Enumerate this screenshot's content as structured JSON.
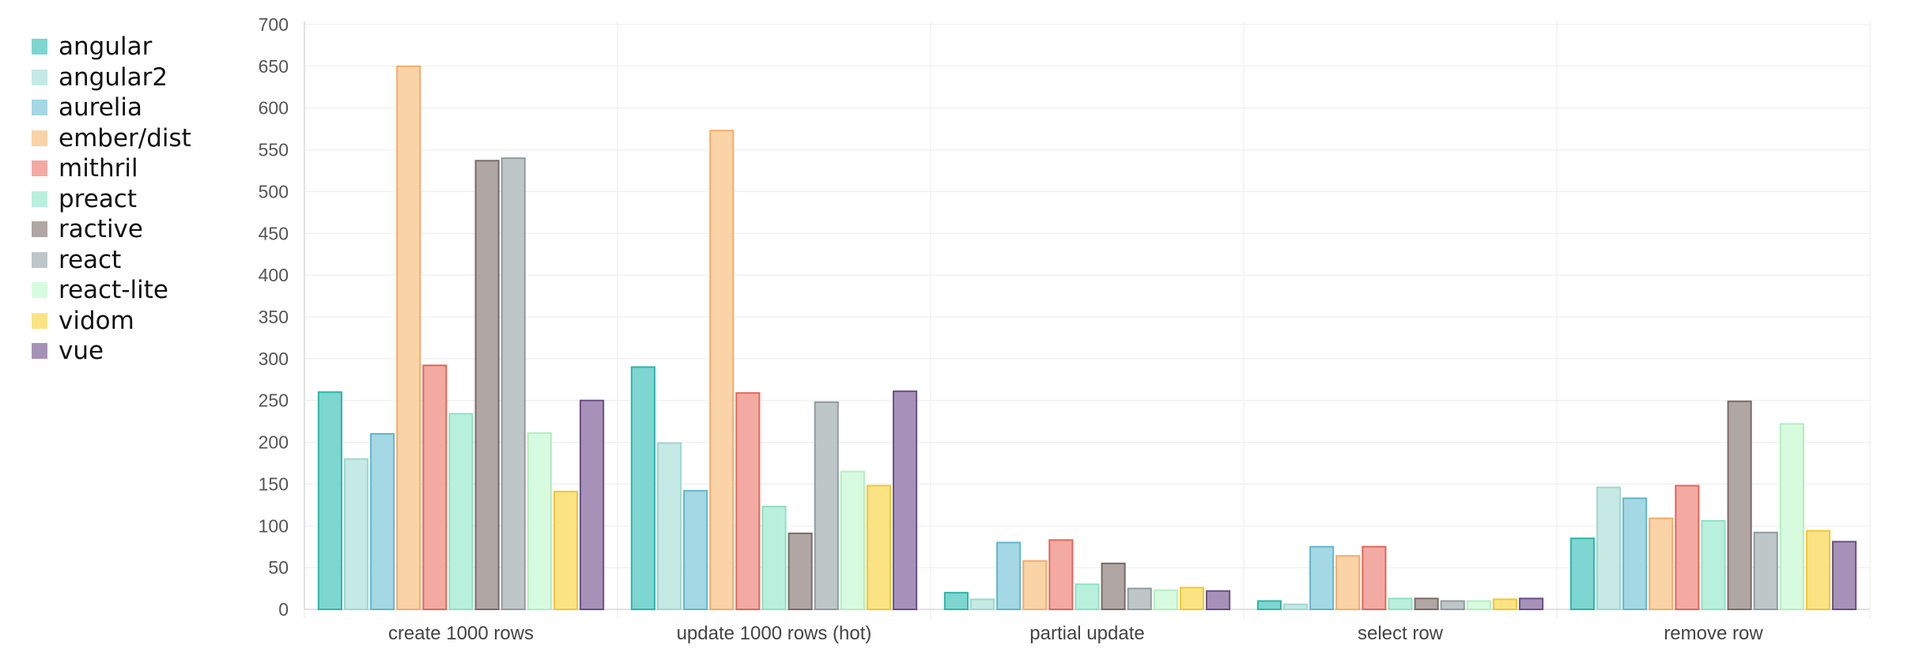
{
  "chart_data": {
    "type": "bar",
    "title": "",
    "xlabel": "",
    "ylabel": "",
    "ylim": [
      0,
      700
    ],
    "yticks": [
      0,
      50,
      100,
      150,
      200,
      250,
      300,
      350,
      400,
      450,
      500,
      550,
      600,
      650,
      700
    ],
    "grid": true,
    "legend_position": "left",
    "categories": [
      "create 1000 rows",
      "update 1000 rows (hot)",
      "partial update",
      "select row",
      "remove row"
    ],
    "series": [
      {
        "name": "angular",
        "color": "#7dd6d0",
        "stroke": "#2fb5aa",
        "values": [
          260,
          290,
          20,
          10,
          85
        ]
      },
      {
        "name": "angular2",
        "color": "#c5e9e4",
        "stroke": "#9fd8d0",
        "values": [
          180,
          199,
          12,
          6,
          146
        ]
      },
      {
        "name": "aurelia",
        "color": "#a3d8e4",
        "stroke": "#62b7cc",
        "values": [
          210,
          142,
          80,
          75,
          133
        ]
      },
      {
        "name": "ember/dist",
        "color": "#fad3a7",
        "stroke": "#f3ac6a",
        "values": [
          650,
          573,
          58,
          64,
          109
        ]
      },
      {
        "name": "mithril",
        "color": "#f3aaa2",
        "stroke": "#e0675a",
        "values": [
          292,
          259,
          83,
          75,
          148
        ]
      },
      {
        "name": "preact",
        "color": "#b9f0dd",
        "stroke": "#8fe0c3",
        "values": [
          234,
          123,
          30,
          13,
          106
        ]
      },
      {
        "name": "ractive",
        "color": "#b0a6a4",
        "stroke": "#7a6b68",
        "values": [
          537,
          91,
          55,
          13,
          249
        ]
      },
      {
        "name": "react",
        "color": "#bec6c8",
        "stroke": "#8f9b9e",
        "values": [
          540,
          248,
          25,
          10,
          92
        ]
      },
      {
        "name": "react-lite",
        "color": "#d7fbdf",
        "stroke": "#b2eec0",
        "values": [
          211,
          165,
          23,
          10,
          222
        ]
      },
      {
        "name": "vidom",
        "color": "#fbe384",
        "stroke": "#f2c630",
        "values": [
          141,
          148,
          26,
          12,
          94
        ]
      },
      {
        "name": "vue",
        "color": "#a692b8",
        "stroke": "#6a4f86",
        "values": [
          250,
          261,
          22,
          13,
          81
        ]
      }
    ]
  }
}
